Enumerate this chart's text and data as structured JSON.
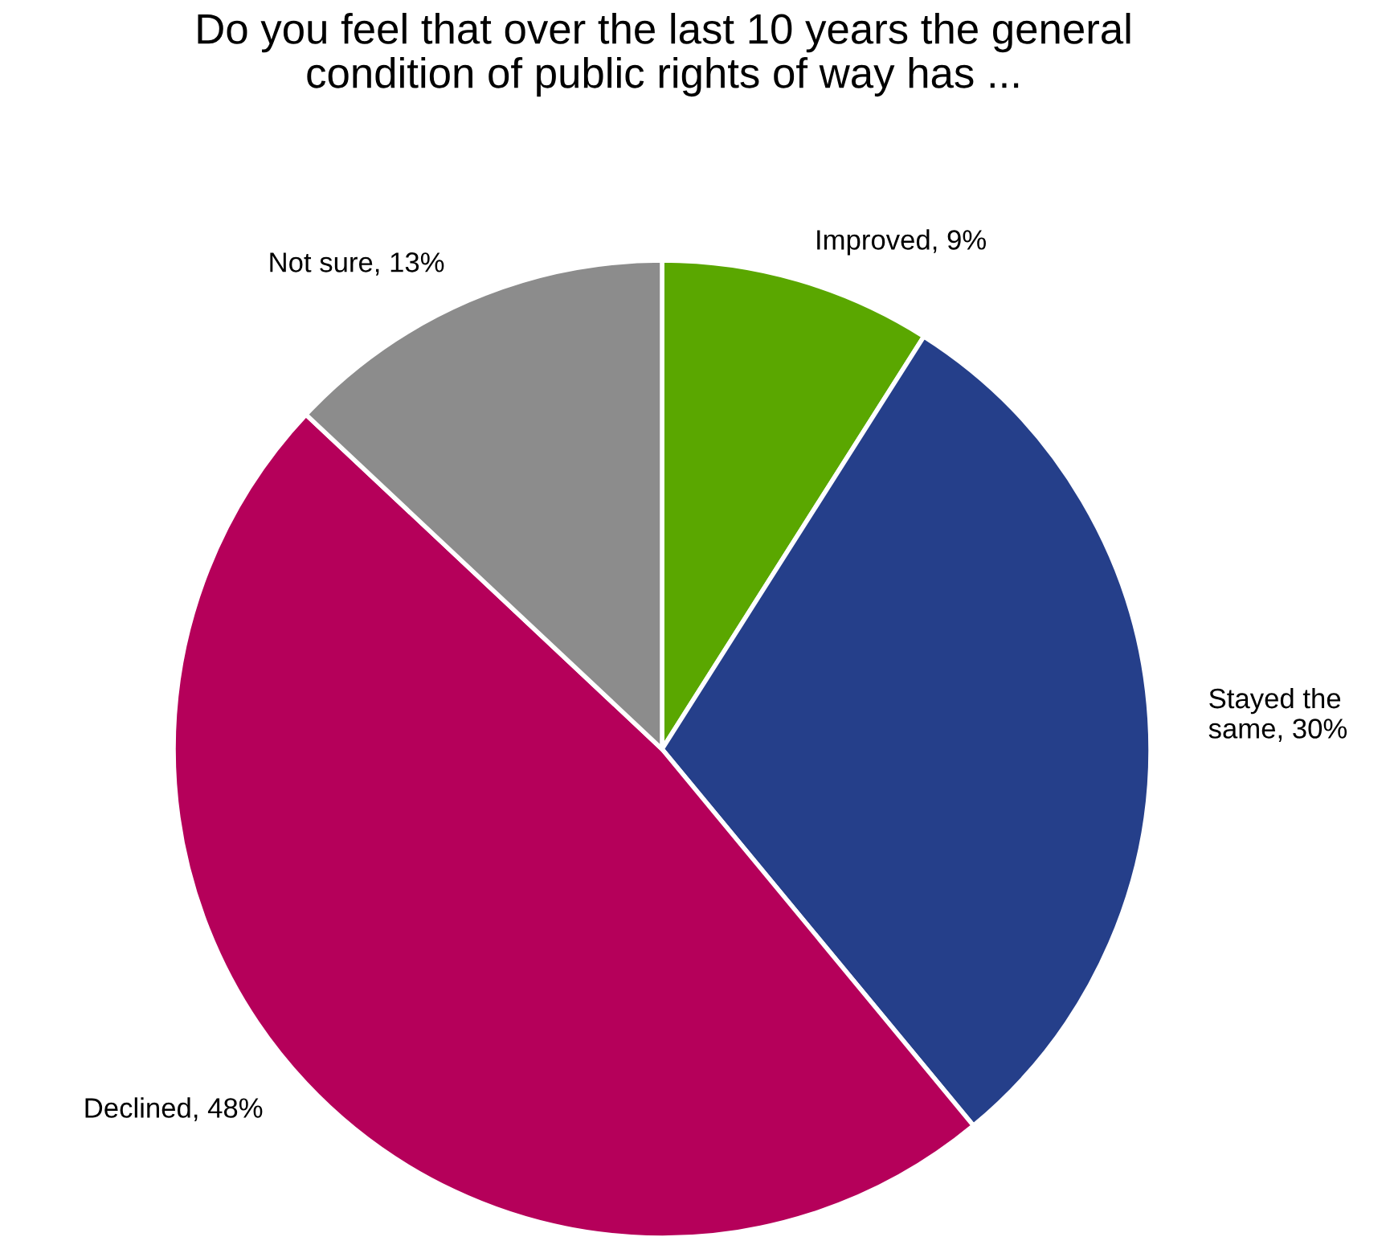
{
  "chart_data": {
    "type": "pie",
    "title": "Do you feel that over the last 10 years the general\ncondition of public rights of way has ...",
    "categories": [
      "Improved",
      "Stayed the same",
      "Declined",
      "Not sure"
    ],
    "values": [
      9,
      30,
      48,
      13
    ],
    "colors": [
      "#5aa700",
      "#253f8a",
      "#b5005a",
      "#8c8c8c"
    ],
    "value_labels": [
      "9%",
      "30%",
      "48%",
      "13%"
    ],
    "legend": false
  }
}
